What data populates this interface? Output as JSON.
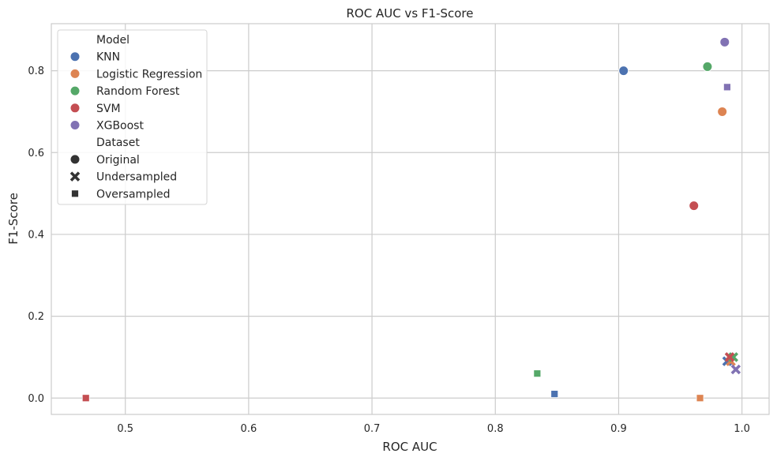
{
  "chart_data": {
    "type": "scatter",
    "title": "ROC AUC vs F1-Score",
    "xlabel": "ROC AUC",
    "ylabel": "F1-Score",
    "xlim": [
      0.44,
      1.022
    ],
    "ylim": [
      -0.04,
      0.915
    ],
    "xticks": [
      0.5,
      0.6,
      0.7,
      0.8,
      0.9,
      1.0
    ],
    "yticks": [
      0.0,
      0.2,
      0.4,
      0.6,
      0.8
    ],
    "xtick_labels": [
      "0.5",
      "0.6",
      "0.7",
      "0.8",
      "0.9",
      "1.0"
    ],
    "ytick_labels": [
      "0.0",
      "0.2",
      "0.4",
      "0.6",
      "0.8"
    ],
    "grid": true,
    "legend_position": "top-left",
    "legend_model_title": "Model",
    "legend_dataset_title": "Dataset",
    "series": [
      {
        "name": "KNN",
        "color": "#4c72b0",
        "points": [
          {
            "dataset": "Original",
            "x": 0.904,
            "y": 0.8
          },
          {
            "dataset": "Undersampled",
            "x": 0.988,
            "y": 0.09
          },
          {
            "dataset": "Oversampled",
            "x": 0.848,
            "y": 0.01
          }
        ]
      },
      {
        "name": "Logistic Regression",
        "color": "#dd8452",
        "points": [
          {
            "dataset": "Original",
            "x": 0.984,
            "y": 0.7
          },
          {
            "dataset": "Undersampled",
            "x": 0.991,
            "y": 0.09
          },
          {
            "dataset": "Oversampled",
            "x": 0.966,
            "y": 0.0
          }
        ]
      },
      {
        "name": "Random Forest",
        "color": "#55a868",
        "points": [
          {
            "dataset": "Original",
            "x": 0.972,
            "y": 0.81
          },
          {
            "dataset": "Undersampled",
            "x": 0.993,
            "y": 0.1
          },
          {
            "dataset": "Oversampled",
            "x": 0.834,
            "y": 0.06
          }
        ]
      },
      {
        "name": "SVM",
        "color": "#c44e52",
        "points": [
          {
            "dataset": "Original",
            "x": 0.961,
            "y": 0.47
          },
          {
            "dataset": "Undersampled",
            "x": 0.99,
            "y": 0.1
          },
          {
            "dataset": "Oversampled",
            "x": 0.468,
            "y": 0.0
          }
        ]
      },
      {
        "name": "XGBoost",
        "color": "#8172b3",
        "points": [
          {
            "dataset": "Original",
            "x": 0.986,
            "y": 0.87
          },
          {
            "dataset": "Undersampled",
            "x": 0.995,
            "y": 0.07
          },
          {
            "dataset": "Oversampled",
            "x": 0.988,
            "y": 0.76
          }
        ]
      }
    ],
    "datasets": [
      {
        "name": "Original",
        "marker": "circle"
      },
      {
        "name": "Undersampled",
        "marker": "x"
      },
      {
        "name": "Oversampled",
        "marker": "square"
      }
    ]
  }
}
